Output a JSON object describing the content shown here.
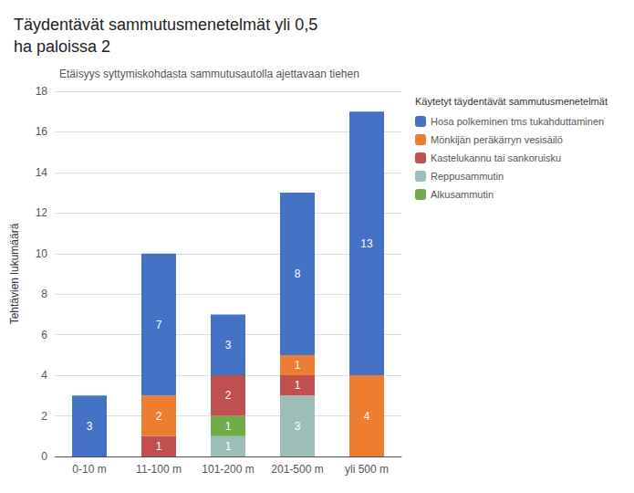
{
  "chart_data": {
    "type": "bar",
    "title": "Täydentävät sammutusmenetelmät yli 0,5\nha paloissa 2",
    "subtitle": "Etäisyys syttymiskohdasta sammutusautolla ajettavaan tiehen",
    "legend_title": "Käytetyt täydentävät sammutusmenetelmät",
    "ylabel": "Tehtävien lukumäärä",
    "categories": [
      "0-10 m",
      "11-100 m",
      "101-200 m",
      "201-500 m",
      "yli 500 m"
    ],
    "series": [
      {
        "name": "Reppusammutin",
        "color": "#9BBFB8",
        "values": [
          0,
          0,
          1,
          3,
          0
        ]
      },
      {
        "name": "Alkusammutin",
        "color": "#70AD47",
        "values": [
          0,
          0,
          1,
          0,
          0
        ]
      },
      {
        "name": "Kastelukannu tai sankoruisku",
        "color": "#C0504D",
        "values": [
          0,
          1,
          2,
          1,
          0
        ]
      },
      {
        "name": "Mönkijän peräkärryn vesisäilö",
        "color": "#ED7D31",
        "values": [
          0,
          2,
          0,
          1,
          4
        ]
      },
      {
        "name": "Hosa polkeminen tms tukahduttaminen",
        "color": "#4472C4",
        "values": [
          3,
          7,
          3,
          8,
          13
        ]
      }
    ],
    "legend_order": [
      "Hosa polkeminen tms tukahduttaminen",
      "Mönkijän peräkärryn vesisäilö",
      "Kastelukannu tai sankoruisku",
      "Reppusammutin",
      "Alkusammutin"
    ],
    "ylim": [
      0,
      18
    ],
    "yticks": [
      0,
      2,
      4,
      6,
      8,
      10,
      12,
      14,
      16,
      18
    ],
    "grid": true,
    "stacked": true,
    "data_labels": true,
    "legend": "right"
  }
}
